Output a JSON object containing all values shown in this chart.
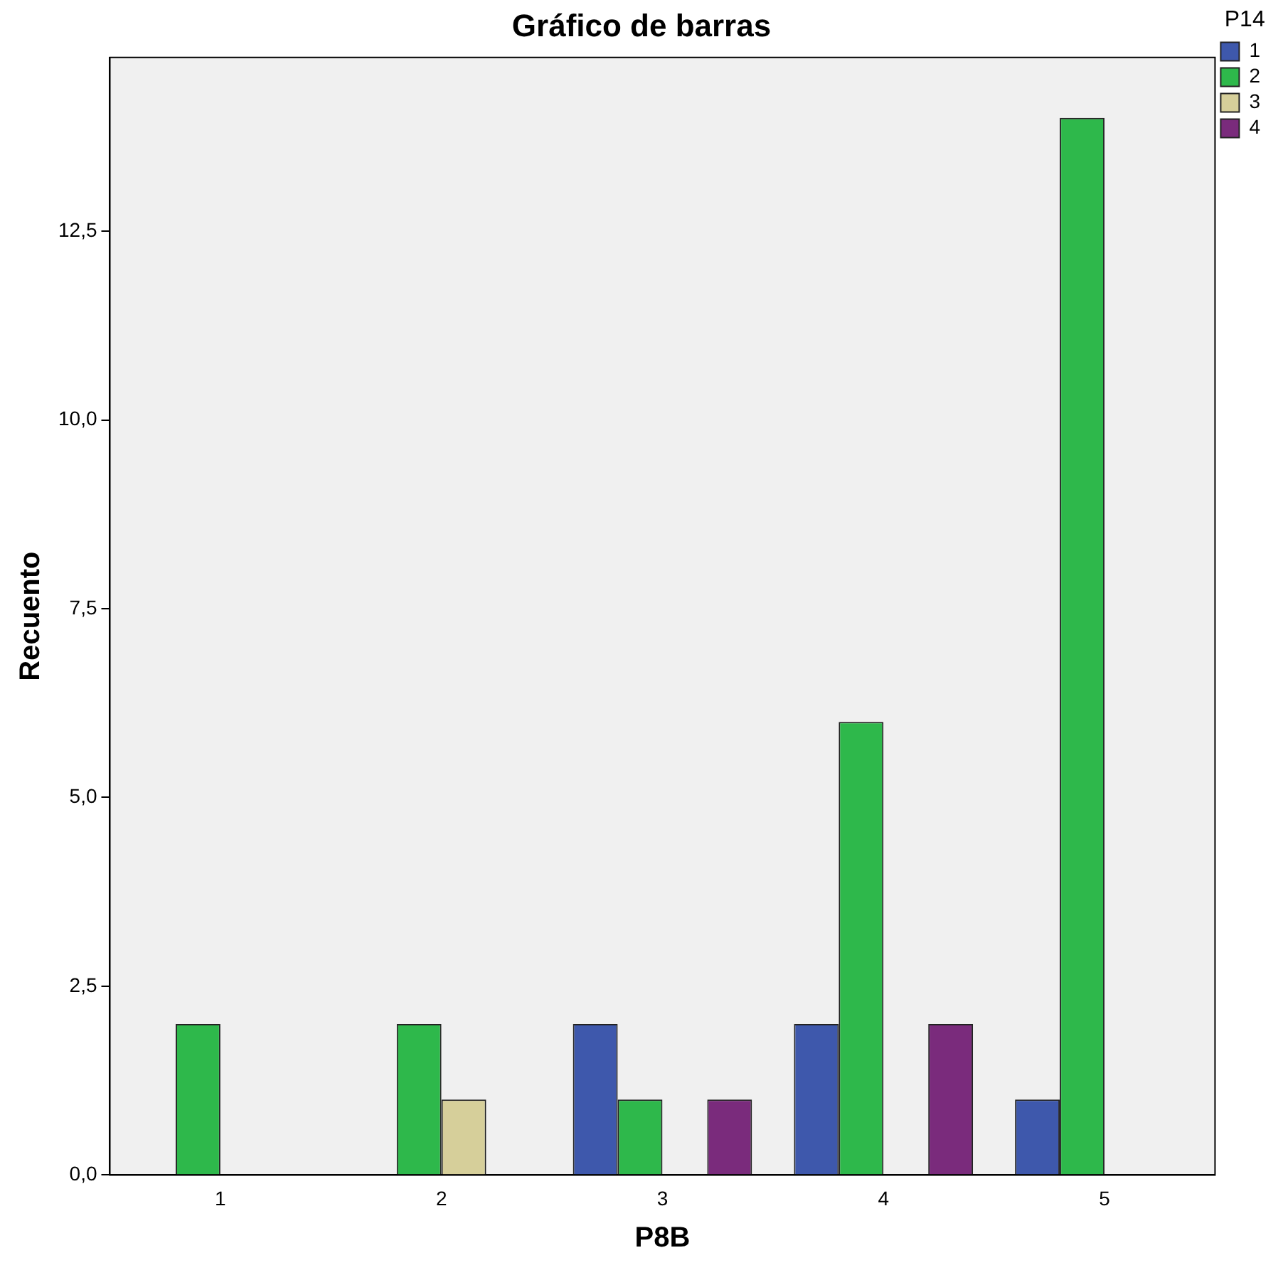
{
  "chart_data": {
    "type": "bar",
    "title": "Gráfico de barras",
    "xlabel": "P8B",
    "ylabel": "Recuento",
    "legend_title": "P14",
    "legend": "right",
    "categories": [
      "1",
      "2",
      "3",
      "4",
      "5"
    ],
    "series": [
      {
        "name": "1",
        "color": "#3e58ac",
        "values": [
          null,
          null,
          2,
          2,
          1
        ]
      },
      {
        "name": "2",
        "color": "#2eb84b",
        "values": [
          2,
          2,
          1,
          6,
          14
        ]
      },
      {
        "name": "3",
        "color": "#d6cf9a",
        "values": [
          null,
          1,
          null,
          null,
          null
        ]
      },
      {
        "name": "4",
        "color": "#7a2b7c",
        "values": [
          null,
          null,
          1,
          2,
          null
        ]
      }
    ],
    "ylim": [
      0,
      14.8
    ],
    "yticks": [
      {
        "value": 0,
        "label": "0,0"
      },
      {
        "value": 2.5,
        "label": "2,5"
      },
      {
        "value": 5,
        "label": "5,0"
      },
      {
        "value": 7.5,
        "label": "7,5"
      },
      {
        "value": 10,
        "label": "10,0"
      },
      {
        "value": 12.5,
        "label": "12,5"
      }
    ],
    "grid": false
  }
}
